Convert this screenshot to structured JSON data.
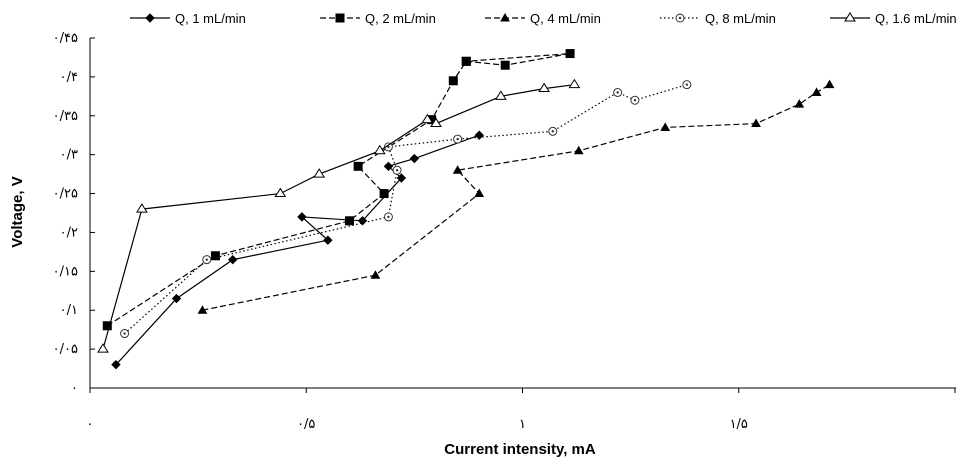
{
  "chart_data": {
    "type": "line",
    "xlabel": "Current intensity, mA",
    "ylabel": "Voltage, V",
    "xlim": [
      0,
      2
    ],
    "ylim": [
      0,
      0.45
    ],
    "x_ticks": [
      0,
      0.5,
      1,
      1.5,
      2
    ],
    "x_tick_labels": [
      "٠",
      "٠/۵",
      "١",
      "١/۵",
      ""
    ],
    "y_ticks": [
      0,
      0.05,
      0.1,
      0.15,
      0.2,
      0.25,
      0.3,
      0.35,
      0.4,
      0.45
    ],
    "y_tick_labels": [
      "٠",
      "٠/٠۵",
      "٠/١",
      "٠/١۵",
      "٠/٢",
      "٠/٢۵",
      "٠/٣",
      "٠/٣۵",
      "٠/۴",
      "٠/۴۵"
    ],
    "grid": false,
    "legend_position": "top",
    "series": [
      {
        "name": "Q, 1 mL/min",
        "marker": "diamond",
        "dash": "solid",
        "color": "#000000",
        "points": [
          [
            0.06,
            0.03
          ],
          [
            0.2,
            0.115
          ],
          [
            0.33,
            0.165
          ],
          [
            0.55,
            0.19
          ],
          [
            0.49,
            0.22
          ],
          [
            0.63,
            0.215
          ],
          [
            0.72,
            0.27
          ],
          [
            0.69,
            0.285
          ],
          [
            0.75,
            0.295
          ],
          [
            0.9,
            0.325
          ]
        ]
      },
      {
        "name": "Q, 2 mL/min",
        "marker": "square",
        "dash": "dashed",
        "color": "#000000",
        "points": [
          [
            0.04,
            0.08
          ],
          [
            0.29,
            0.17
          ],
          [
            0.6,
            0.215
          ],
          [
            0.68,
            0.25
          ],
          [
            0.62,
            0.285
          ],
          [
            0.79,
            0.345
          ],
          [
            0.84,
            0.395
          ],
          [
            0.87,
            0.42
          ],
          [
            0.96,
            0.415
          ],
          [
            1.11,
            0.43
          ],
          [
            0.87,
            0.42
          ]
        ]
      },
      {
        "name": "Q, 4 mL/min",
        "marker": "triangle-filled",
        "dash": "dashed",
        "color": "#000000",
        "points": [
          [
            0.26,
            0.1
          ],
          [
            0.66,
            0.145
          ],
          [
            0.9,
            0.25
          ],
          [
            0.85,
            0.28
          ],
          [
            1.13,
            0.305
          ],
          [
            1.33,
            0.335
          ],
          [
            1.54,
            0.34
          ],
          [
            1.64,
            0.365
          ],
          [
            1.68,
            0.38
          ],
          [
            1.71,
            0.39
          ]
        ]
      },
      {
        "name": "Q, 8 mL/min",
        "marker": "circle-open",
        "dash": "dotted",
        "color": "#000000",
        "points": [
          [
            0.08,
            0.07
          ],
          [
            0.27,
            0.165
          ],
          [
            0.69,
            0.22
          ],
          [
            0.71,
            0.28
          ],
          [
            0.69,
            0.31
          ],
          [
            0.85,
            0.32
          ],
          [
            1.07,
            0.33
          ],
          [
            1.22,
            0.38
          ],
          [
            1.26,
            0.37
          ],
          [
            1.38,
            0.39
          ]
        ]
      },
      {
        "name": "Q, 1.6 mL/min",
        "marker": "triangle-open",
        "dash": "solid",
        "color": "#000000",
        "points": [
          [
            0.03,
            0.05
          ],
          [
            0.12,
            0.23
          ],
          [
            0.44,
            0.25
          ],
          [
            0.53,
            0.275
          ],
          [
            0.67,
            0.305
          ],
          [
            0.78,
            0.345
          ],
          [
            0.8,
            0.34
          ],
          [
            0.95,
            0.375
          ],
          [
            1.05,
            0.385
          ],
          [
            1.12,
            0.39
          ]
        ]
      }
    ]
  }
}
